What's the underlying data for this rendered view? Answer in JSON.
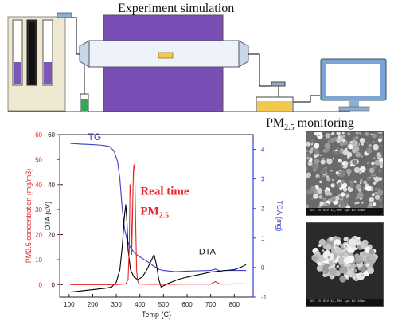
{
  "top": {
    "experiment_title": "Experiment simulation",
    "monitoring_title_main": "PM",
    "monitoring_title_sub": "2.5",
    "monitoring_title_tail": " monitoring"
  },
  "chart_data": {
    "type": "line",
    "xlabel": "Temp (C)",
    "x_ticks": [
      100,
      200,
      300,
      400,
      500,
      600,
      700,
      800
    ],
    "xlim": [
      60,
      880
    ],
    "axes": [
      {
        "id": "pm",
        "label": "PM2.5 concentration (mg/m3)",
        "color": "#e8262a",
        "ylim": [
          -5,
          60
        ],
        "ticks": [
          0,
          10,
          20,
          30,
          40,
          50,
          60
        ]
      },
      {
        "id": "dta",
        "label": "DTA (uV)",
        "color": "#000000",
        "ylim": [
          -5,
          60
        ],
        "ticks": [
          0,
          20,
          40,
          60
        ]
      },
      {
        "id": "tga",
        "label": "TGA (mg)",
        "color": "#3a3fcf",
        "ylim": [
          -1,
          4.5
        ],
        "ticks": [
          -1,
          0,
          1,
          2,
          3,
          4
        ]
      }
    ],
    "series": [
      {
        "name": "TG",
        "axis": "tga",
        "color": "#3a3fcf",
        "x": [
          105,
          150,
          200,
          240,
          270,
          290,
          305,
          315,
          325,
          335,
          345,
          355,
          365,
          375,
          385,
          400,
          420,
          440,
          460,
          480,
          500,
          550,
          600,
          650,
          700,
          720,
          740,
          760,
          800,
          850
        ],
        "y": [
          4.2,
          4.18,
          4.16,
          4.14,
          4.1,
          3.95,
          3.6,
          3.0,
          2.0,
          1.3,
          0.95,
          0.75,
          0.62,
          0.52,
          0.44,
          0.36,
          0.26,
          0.16,
          0.04,
          -0.06,
          -0.1,
          -0.14,
          -0.12,
          -0.11,
          -0.1,
          -0.05,
          -0.12,
          -0.1,
          -0.1,
          -0.1
        ]
      },
      {
        "name": "DTA",
        "axis": "dta",
        "color": "#000000",
        "x": [
          105,
          150,
          200,
          250,
          280,
          300,
          315,
          325,
          335,
          340,
          345,
          350,
          360,
          375,
          390,
          410,
          430,
          450,
          460,
          470,
          480,
          490,
          520,
          560,
          600,
          650,
          700,
          750,
          800,
          830,
          850
        ],
        "y": [
          -3,
          -2.5,
          -2,
          -1.5,
          -1,
          1,
          6,
          15,
          28,
          32,
          25,
          14,
          6,
          3,
          2,
          3,
          6,
          10,
          12,
          8,
          2,
          -1,
          0.5,
          2,
          3,
          4,
          5,
          5.5,
          6,
          7,
          8
        ]
      },
      {
        "name": "PM2.5",
        "axis": "pm",
        "color": "#e8262a",
        "x": [
          105,
          200,
          300,
          340,
          350,
          355,
          358,
          362,
          365,
          368,
          372,
          375,
          378,
          382,
          386,
          390,
          395,
          400,
          450,
          500,
          600,
          700,
          720,
          740,
          800,
          850
        ],
        "y": [
          0,
          0,
          0,
          0.3,
          2,
          15,
          40,
          36,
          12,
          25,
          45,
          48,
          46,
          25,
          6,
          1.5,
          0.5,
          0.2,
          0.1,
          0.1,
          0.2,
          0.2,
          1.2,
          0.2,
          0.3,
          0.3
        ]
      }
    ],
    "annotations": {
      "tg_label": "TG",
      "dta_label": "DTA",
      "realtime_line1": "Real time",
      "realtime_line2_main": "PM",
      "realtime_line2_sub": "2.5"
    }
  },
  "sem": {
    "footer_1": "SEI 15.0kV  X3,000  1μm  WD 10mm",
    "footer_2": "SEI 15.0kV  X2,500  1μm  WD 10mm"
  }
}
